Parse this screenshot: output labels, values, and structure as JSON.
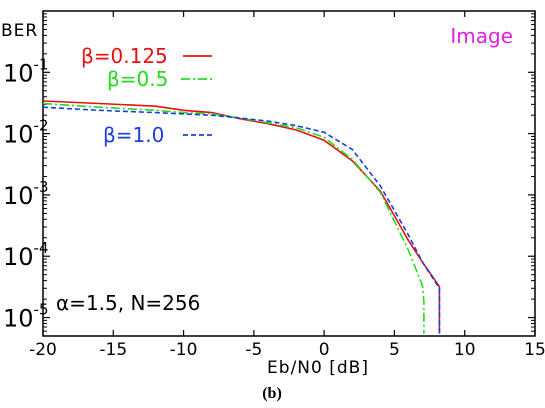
{
  "chart_data": {
    "type": "line",
    "title": "",
    "xlabel": "Eb/N0 [dB]",
    "ylabel": "BER",
    "xlim": [
      -20,
      15
    ],
    "ylim": [
      5e-06,
      1
    ],
    "y_scale": "log",
    "x_ticks": [
      -20,
      -15,
      -10,
      -5,
      0,
      5,
      10,
      15
    ],
    "x_tick_labels": [
      "-20",
      "-15",
      "-10",
      "-5",
      "0",
      "5",
      "10",
      "15"
    ],
    "y_ticks": [
      {
        "value": 0.1,
        "base": "10",
        "exp": "-1"
      },
      {
        "value": 0.01,
        "base": "10",
        "exp": "-2"
      },
      {
        "value": 0.001,
        "base": "10",
        "exp": "-3"
      },
      {
        "value": 0.0001,
        "base": "10",
        "exp": "-4"
      },
      {
        "value": 1e-05,
        "base": "10",
        "exp": "-5"
      }
    ],
    "grid": false,
    "legend_position": "top-left",
    "annotation_top_right": "Image",
    "annotation_top_right_color": "#e020e0",
    "annotation_bottom_left": "α=1.5, N=256",
    "series": [
      {
        "name": "β=0.125",
        "color": "#e81010",
        "dash": "solid",
        "x": [
          -20,
          -16,
          -12,
          -10,
          -8,
          -6,
          -4,
          -2,
          0,
          2,
          4,
          6,
          7,
          8.2,
          8.2
        ],
        "y": [
          0.034,
          0.031,
          0.028,
          0.024,
          0.022,
          0.0175,
          0.0145,
          0.0115,
          0.0078,
          0.0036,
          0.00115,
          0.00018,
          8e-05,
          3.2e-05,
          5.5e-06
        ]
      },
      {
        "name": "β=0.5",
        "color": "#20dd20",
        "dash": "dashdot",
        "x": [
          -20,
          -16,
          -12,
          -10,
          -8,
          -6,
          -4,
          -2,
          0,
          2,
          4,
          6,
          7,
          7.1,
          7.1
        ],
        "y": [
          0.031,
          0.027,
          0.024,
          0.022,
          0.021,
          0.018,
          0.015,
          0.0125,
          0.0087,
          0.0038,
          0.0011,
          0.000125,
          3.3e-05,
          1.8e-05,
          5.5e-06
        ]
      },
      {
        "name": "β=1.0",
        "color": "#1a3ee0",
        "dash": "dashed",
        "x": [
          -20,
          -16,
          -12,
          -10,
          -8,
          -6,
          -4,
          -2,
          0,
          2,
          4,
          6,
          7,
          8.2,
          8.2
        ],
        "y": [
          0.027,
          0.024,
          0.022,
          0.021,
          0.02,
          0.018,
          0.016,
          0.0135,
          0.0105,
          0.0055,
          0.0014,
          0.00022,
          8e-05,
          3e-05,
          5.5e-06
        ]
      }
    ]
  },
  "caption": "(b)"
}
